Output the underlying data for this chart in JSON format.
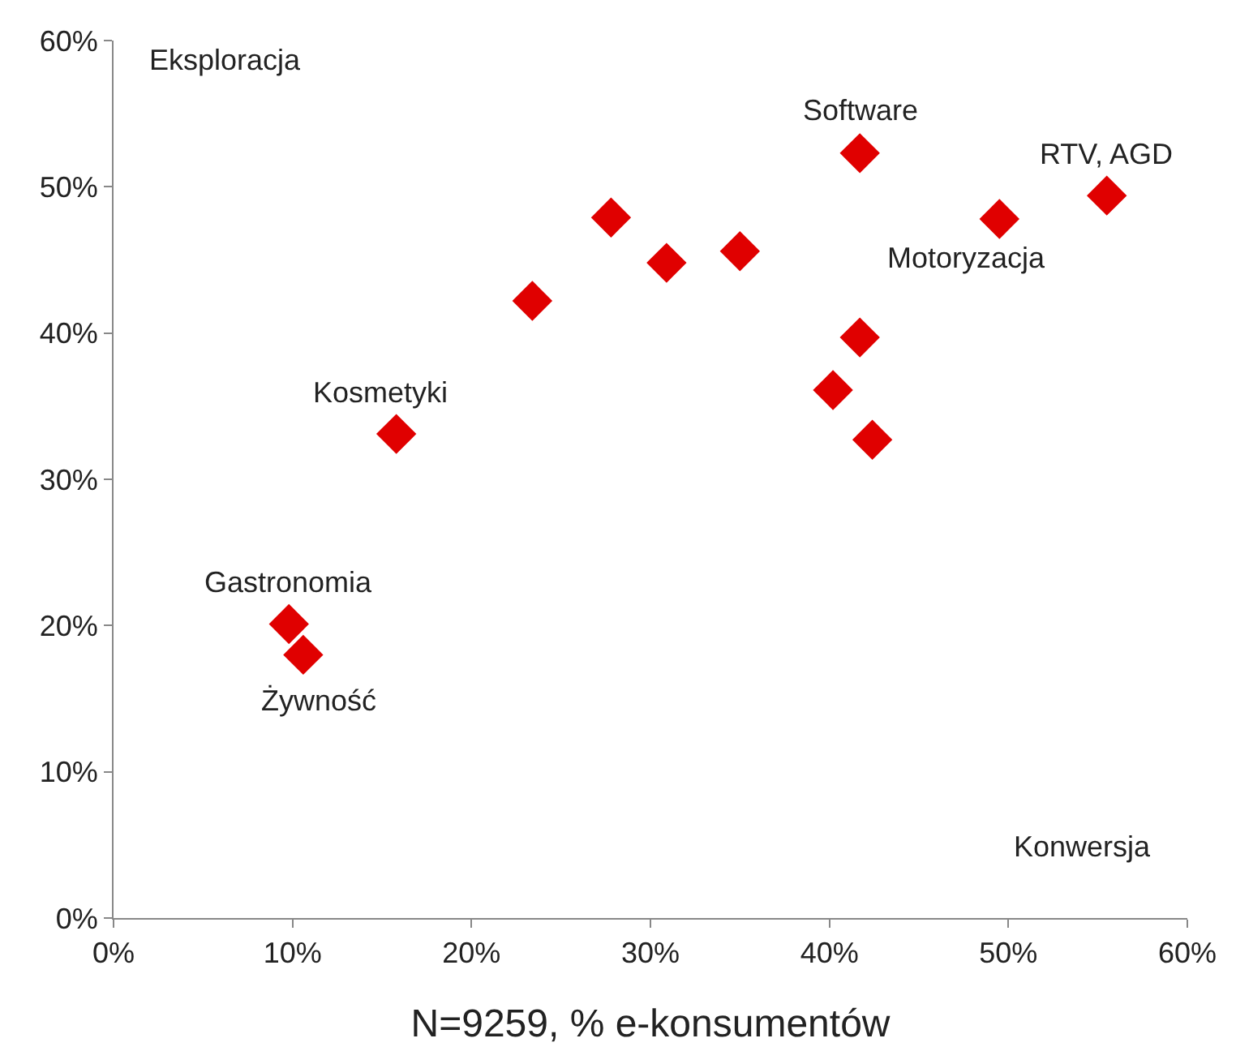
{
  "chart_data": {
    "type": "scatter",
    "xlabel": "N=9259, % e-konsumentów",
    "x": [
      41.7,
      55.5,
      49.5,
      27.8,
      30.9,
      35.0,
      23.4,
      41.7,
      40.2,
      42.4,
      15.8,
      9.8,
      10.6
    ],
    "values": [
      52.3,
      49.4,
      47.8,
      47.9,
      44.8,
      45.6,
      42.2,
      39.7,
      36.1,
      32.7,
      33.1,
      20.1,
      18.0
    ],
    "color": "#e00000",
    "marker": "diamond",
    "legend": false,
    "xlim": [
      0,
      60
    ],
    "ylim": [
      0,
      60
    ],
    "xticks": [
      {
        "value": 0,
        "label": "0%"
      },
      {
        "value": 10,
        "label": "10%"
      },
      {
        "value": 20,
        "label": "20%"
      },
      {
        "value": 30,
        "label": "30%"
      },
      {
        "value": 40,
        "label": "40%"
      },
      {
        "value": 50,
        "label": "50%"
      },
      {
        "value": 60,
        "label": "60%"
      }
    ],
    "yticks": [
      {
        "value": 0,
        "label": "0%"
      },
      {
        "value": 10,
        "label": "10%"
      },
      {
        "value": 20,
        "label": "20%"
      },
      {
        "value": 30,
        "label": "30%"
      },
      {
        "value": 40,
        "label": "40%"
      },
      {
        "value": 50,
        "label": "50%"
      },
      {
        "value": 60,
        "label": "60%"
      }
    ],
    "annotations": [
      "Eksploracja",
      "Konwersja",
      {
        "text": "Software",
        "x": 41.7,
        "y": 52.3
      },
      {
        "text": "RTV, AGD",
        "x": 55.5,
        "y": 49.4
      },
      {
        "text": "Motoryzacja",
        "x": 49.5,
        "y": 47.8
      },
      {
        "text": "Kosmetyki",
        "x": 15.8,
        "y": 33.1
      },
      {
        "text": "Gastronomia",
        "x": 9.8,
        "y": 20.1
      },
      {
        "text": "Żywność",
        "x": 10.6,
        "y": 18.0
      }
    ]
  }
}
